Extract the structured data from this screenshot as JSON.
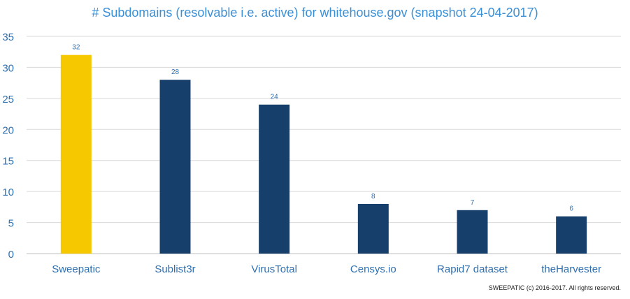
{
  "chart_data": {
    "type": "bar",
    "title": "# Subdomains (resolvable i.e. active) for whitehouse.gov (snapshot 24-04-2017)",
    "categories": [
      "Sweepatic",
      "Sublist3r",
      "VirusTotal",
      "Censys.io",
      "Rapid7 dataset",
      "theHarvester"
    ],
    "values": [
      32,
      28,
      24,
      8,
      7,
      6
    ],
    "data_labels": [
      "32",
      "28",
      "24",
      "8",
      "7",
      "6"
    ],
    "bar_colors": [
      "#f5c800",
      "#173f6b",
      "#173f6b",
      "#173f6b",
      "#173f6b",
      "#173f6b"
    ],
    "xlabel": "",
    "ylabel": "",
    "ylim": [
      0,
      35
    ],
    "yticks": [
      "0",
      "5",
      "10",
      "15",
      "20",
      "25",
      "30",
      "35"
    ],
    "grid": true,
    "legend": "none"
  },
  "footer": {
    "copyright": "SWEEPATIC (c) 2016-2017. All rights reserved."
  },
  "colors": {
    "title": "#3a8fd6",
    "axis_text": "#2e6fb0",
    "gridline": "#d9d9d9",
    "data_label": "#2e6fb0"
  }
}
